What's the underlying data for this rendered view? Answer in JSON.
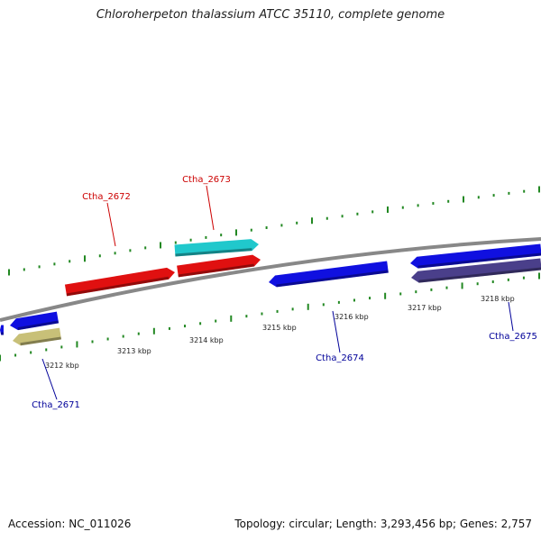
{
  "title": "Chloroherpeton thalassium ATCC 35110, complete genome",
  "footer": {
    "accession": "Accession: NC_011026",
    "summary": "Topology: circular; Length: 3,293,456 bp; Genes: 2,757"
  },
  "colors": {
    "backbone": "#888888",
    "tick": "#228822",
    "forward_gene": "#e01010",
    "forward_gene_alt": "#20c8cc",
    "reverse_gene": "#1010e0",
    "reverse_gene_alt": "#4a3f8a",
    "reverse_gene_khaki": "#c8c078",
    "label_forward": "#cc0000",
    "label_reverse": "#000099"
  },
  "scale": {
    "tick_labels": [
      {
        "text": "3212 kbp"
      },
      {
        "text": "3213 kbp"
      },
      {
        "text": "3214 kbp"
      },
      {
        "text": "3215 kbp"
      },
      {
        "text": "3216 kbp"
      },
      {
        "text": "3217 kbp"
      },
      {
        "text": "3218 kbp"
      }
    ]
  },
  "genes": {
    "forward": [
      {
        "label": "Ctha_2672",
        "color": "#e01010"
      },
      {
        "label": "Ctha_2673",
        "color": "#20c8cc"
      },
      {
        "label": "",
        "color": "#e01010"
      }
    ],
    "reverse": [
      {
        "label": "",
        "color": "#1010e0"
      },
      {
        "label": "",
        "color": "#1010e0"
      },
      {
        "label": "Ctha_2671",
        "color": "#c8c078"
      },
      {
        "label": "Ctha_2674",
        "color": "#1010e0"
      },
      {
        "label": "",
        "color": "#1010e0"
      },
      {
        "label": "Ctha_2675",
        "color": "#4a3f8a"
      }
    ]
  }
}
